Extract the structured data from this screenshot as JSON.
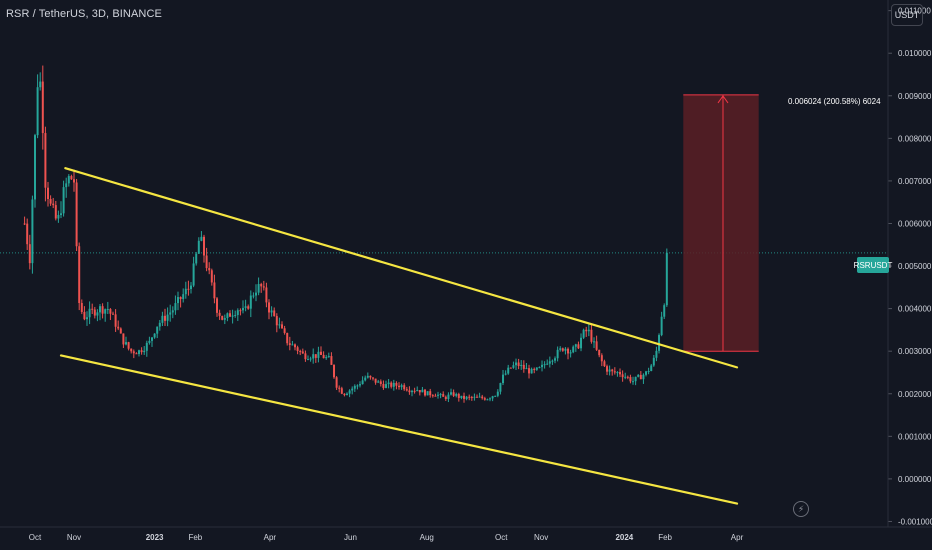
{
  "header": {
    "symbol_title": "RSR / TetherUS, 3D, BINANCE",
    "currency_button": "USDT"
  },
  "price_tag": "RSRUSDT",
  "measure_label": "0.006024 (200.58%) 6024",
  "icons": {
    "bolt": "lightning-bolt-icon"
  },
  "colors": {
    "background": "#131722",
    "up": "#26a69a",
    "down": "#ef5350",
    "trendline": "#f5e642",
    "measure_fill": "#5a1e24",
    "measure_line": "#f23645",
    "axis_text": "#d1d4dc",
    "price_line": "#26a69a"
  },
  "chart_data": {
    "type": "candlestick",
    "x_axis": {
      "labels": [
        "Oct",
        "Nov",
        "2023",
        "Feb",
        "Apr",
        "Jun",
        "Aug",
        "Oct",
        "Nov",
        "2024",
        "Feb",
        "Apr"
      ],
      "label_days": [
        0,
        45,
        138,
        185,
        271,
        364,
        452,
        538,
        584,
        680,
        727,
        810
      ]
    },
    "y_axis": {
      "ticks": [
        "0.011000",
        "0.010000",
        "0.009000",
        "0.008000",
        "0.007000",
        "0.006000",
        "0.005000",
        "0.004000",
        "0.003000",
        "0.002000",
        "0.001000",
        "0.000000",
        "-0.001000"
      ],
      "range": [
        -0.00113,
        0.01125
      ]
    },
    "current_price": 0.00531,
    "trendlines": [
      {
        "name": "upper",
        "points": [
          [
            35,
            0.0073
          ],
          [
            810,
            0.00262
          ]
        ]
      },
      {
        "name": "lower",
        "points": [
          [
            30,
            0.0029
          ],
          [
            810,
            -0.00058
          ]
        ]
      }
    ],
    "measure": {
      "start_day": 748,
      "end_day": 835,
      "from_price": 0.003,
      "to_price": 0.00902
    },
    "candle_anchors": [
      [
        -12,
        0.006
      ],
      [
        -6,
        0.0052
      ],
      [
        0,
        0.008
      ],
      [
        4,
        0.0098
      ],
      [
        8,
        0.0088
      ],
      [
        12,
        0.007
      ],
      [
        18,
        0.0064
      ],
      [
        26,
        0.006
      ],
      [
        34,
        0.0068
      ],
      [
        40,
        0.0071
      ],
      [
        45,
        0.007
      ],
      [
        50,
        0.0042
      ],
      [
        56,
        0.0038
      ],
      [
        64,
        0.0039
      ],
      [
        74,
        0.004
      ],
      [
        84,
        0.004
      ],
      [
        92,
        0.0037
      ],
      [
        100,
        0.0033
      ],
      [
        110,
        0.003
      ],
      [
        120,
        0.003
      ],
      [
        132,
        0.0032
      ],
      [
        140,
        0.0036
      ],
      [
        150,
        0.0038
      ],
      [
        160,
        0.004
      ],
      [
        170,
        0.0043
      ],
      [
        178,
        0.0045
      ],
      [
        184,
        0.005
      ],
      [
        190,
        0.0057
      ],
      [
        196,
        0.0052
      ],
      [
        202,
        0.0047
      ],
      [
        210,
        0.004
      ],
      [
        218,
        0.0037
      ],
      [
        226,
        0.0039
      ],
      [
        234,
        0.004
      ],
      [
        242,
        0.0039
      ],
      [
        250,
        0.0043
      ],
      [
        256,
        0.0045
      ],
      [
        262,
        0.0045
      ],
      [
        270,
        0.004
      ],
      [
        276,
        0.0038
      ],
      [
        284,
        0.0035
      ],
      [
        292,
        0.0032
      ],
      [
        300,
        0.0031
      ],
      [
        310,
        0.0029
      ],
      [
        320,
        0.0029
      ],
      [
        330,
        0.0029
      ],
      [
        340,
        0.0028
      ],
      [
        348,
        0.0022
      ],
      [
        356,
        0.002
      ],
      [
        364,
        0.0021
      ],
      [
        372,
        0.0022
      ],
      [
        382,
        0.0024
      ],
      [
        392,
        0.0023
      ],
      [
        402,
        0.0022
      ],
      [
        412,
        0.0022
      ],
      [
        422,
        0.0022
      ],
      [
        432,
        0.0021
      ],
      [
        442,
        0.0021
      ],
      [
        452,
        0.002
      ],
      [
        462,
        0.002
      ],
      [
        472,
        0.0019
      ],
      [
        482,
        0.002
      ],
      [
        492,
        0.0019
      ],
      [
        502,
        0.0019
      ],
      [
        512,
        0.0019
      ],
      [
        522,
        0.0019
      ],
      [
        532,
        0.002
      ],
      [
        540,
        0.0024
      ],
      [
        548,
        0.0026
      ],
      [
        556,
        0.0027
      ],
      [
        564,
        0.0026
      ],
      [
        574,
        0.0025
      ],
      [
        584,
        0.0026
      ],
      [
        592,
        0.0028
      ],
      [
        600,
        0.0029
      ],
      [
        610,
        0.0031
      ],
      [
        618,
        0.003
      ],
      [
        626,
        0.0031
      ],
      [
        632,
        0.0034
      ],
      [
        638,
        0.0035
      ],
      [
        644,
        0.0032
      ],
      [
        650,
        0.0029
      ],
      [
        658,
        0.0026
      ],
      [
        666,
        0.0025
      ],
      [
        674,
        0.0025
      ],
      [
        682,
        0.0024
      ],
      [
        690,
        0.0023
      ],
      [
        698,
        0.0024
      ],
      [
        706,
        0.0025
      ],
      [
        712,
        0.0027
      ],
      [
        716,
        0.0029
      ],
      [
        718,
        0.0031
      ],
      [
        721,
        0.0036
      ],
      [
        724,
        0.004
      ],
      [
        727,
        0.0043
      ],
      [
        731,
        0.00531
      ]
    ]
  }
}
